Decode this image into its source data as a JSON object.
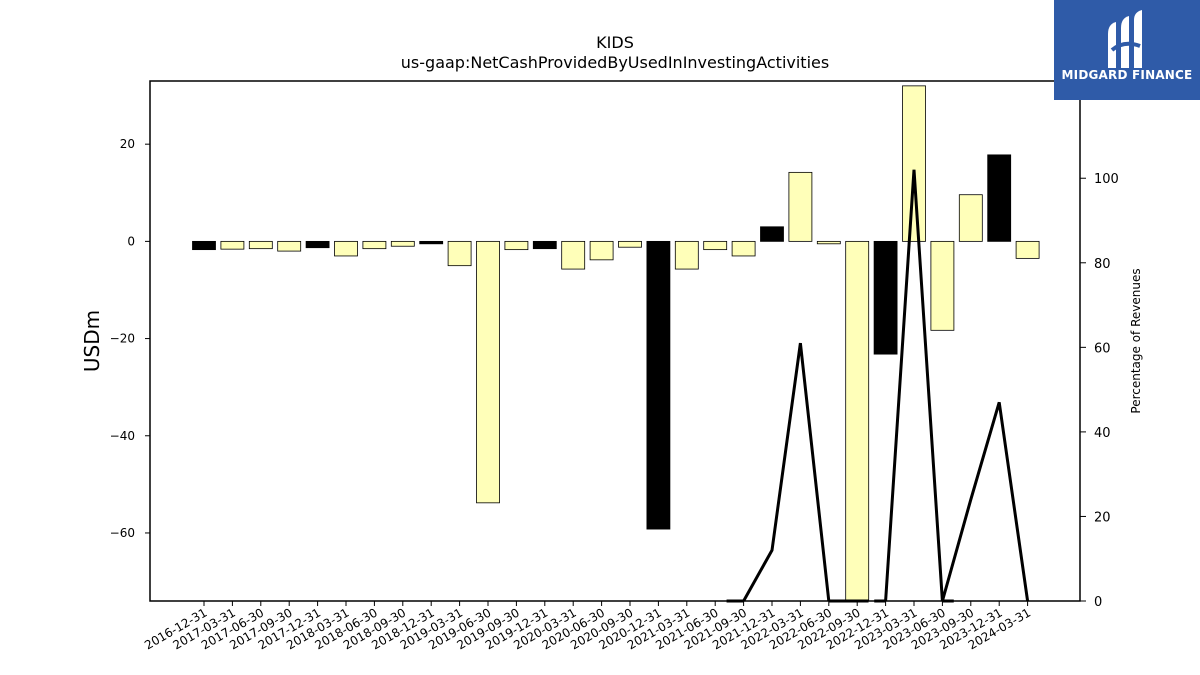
{
  "chart_data": {
    "type": "bar",
    "title": "KIDS",
    "subtitle": "us-gaap:NetCashProvidedByUsedInInvestingActivities",
    "ylabel": "USDm",
    "y2label": "Percentage of Revenues",
    "ylim": [
      -74,
      33
    ],
    "y2lim": [
      0,
      123
    ],
    "yticks": [
      -60,
      -40,
      -20,
      0,
      20
    ],
    "y2ticks": [
      0,
      20,
      40,
      60,
      80,
      100
    ],
    "categories": [
      "2016-12-31",
      "2017-03-31",
      "2017-06-30",
      "2017-09-30",
      "2017-12-31",
      "2018-03-31",
      "2018-06-30",
      "2018-09-30",
      "2018-12-31",
      "2019-03-31",
      "2019-06-30",
      "2019-09-30",
      "2019-12-31",
      "2020-03-31",
      "2020-06-30",
      "2020-09-30",
      "2020-12-31",
      "2021-03-31",
      "2021-06-30",
      "2021-09-30",
      "2021-12-31",
      "2022-03-31",
      "2022-06-30",
      "2022-09-30",
      "2022-12-31",
      "2023-03-31",
      "2023-06-30",
      "2023-09-30",
      "2023-12-31",
      "2024-03-31"
    ],
    "series": [
      {
        "type": "bar",
        "values": [
          -1.7,
          -1.6,
          -1.5,
          -2.0,
          -1.3,
          -3.0,
          -1.5,
          -1.0,
          -0.5,
          -5.0,
          -53.8,
          -1.7,
          -1.5,
          -5.7,
          -3.8,
          -1.2,
          -59.2,
          -5.7,
          -1.7,
          -3.0,
          3.0,
          14.2,
          -0.5,
          -74.0,
          -23.2,
          32.0,
          -18.3,
          9.6,
          17.8,
          -3.5
        ],
        "colors": [
          "#000000",
          "#ffffb9",
          "#ffffb9",
          "#ffffb9",
          "#000000",
          "#ffffb9",
          "#ffffb9",
          "#ffffb9",
          "#000000",
          "#ffffb9",
          "#ffffb9",
          "#ffffb9",
          "#000000",
          "#ffffb9",
          "#ffffb9",
          "#ffffb9",
          "#000000",
          "#ffffb9",
          "#ffffb9",
          "#ffffb9",
          "#000000",
          "#ffffb9",
          "#ffffb9",
          "#ffffb9",
          "#000000",
          "#ffffb9",
          "#ffffb9",
          "#ffffb9",
          "#000000",
          "#ffffb9"
        ]
      },
      {
        "type": "line",
        "axis": "right",
        "color": "#000000",
        "values": [
          null,
          null,
          null,
          null,
          null,
          null,
          null,
          null,
          null,
          null,
          null,
          null,
          null,
          null,
          null,
          null,
          null,
          null,
          null,
          0,
          12,
          61,
          0,
          null,
          0,
          102,
          0,
          24,
          47,
          0
        ]
      }
    ],
    "grid": false,
    "legend": "none"
  },
  "logo": {
    "name": "MIDGARD FINANCE",
    "bg": "#2f5ba8"
  }
}
